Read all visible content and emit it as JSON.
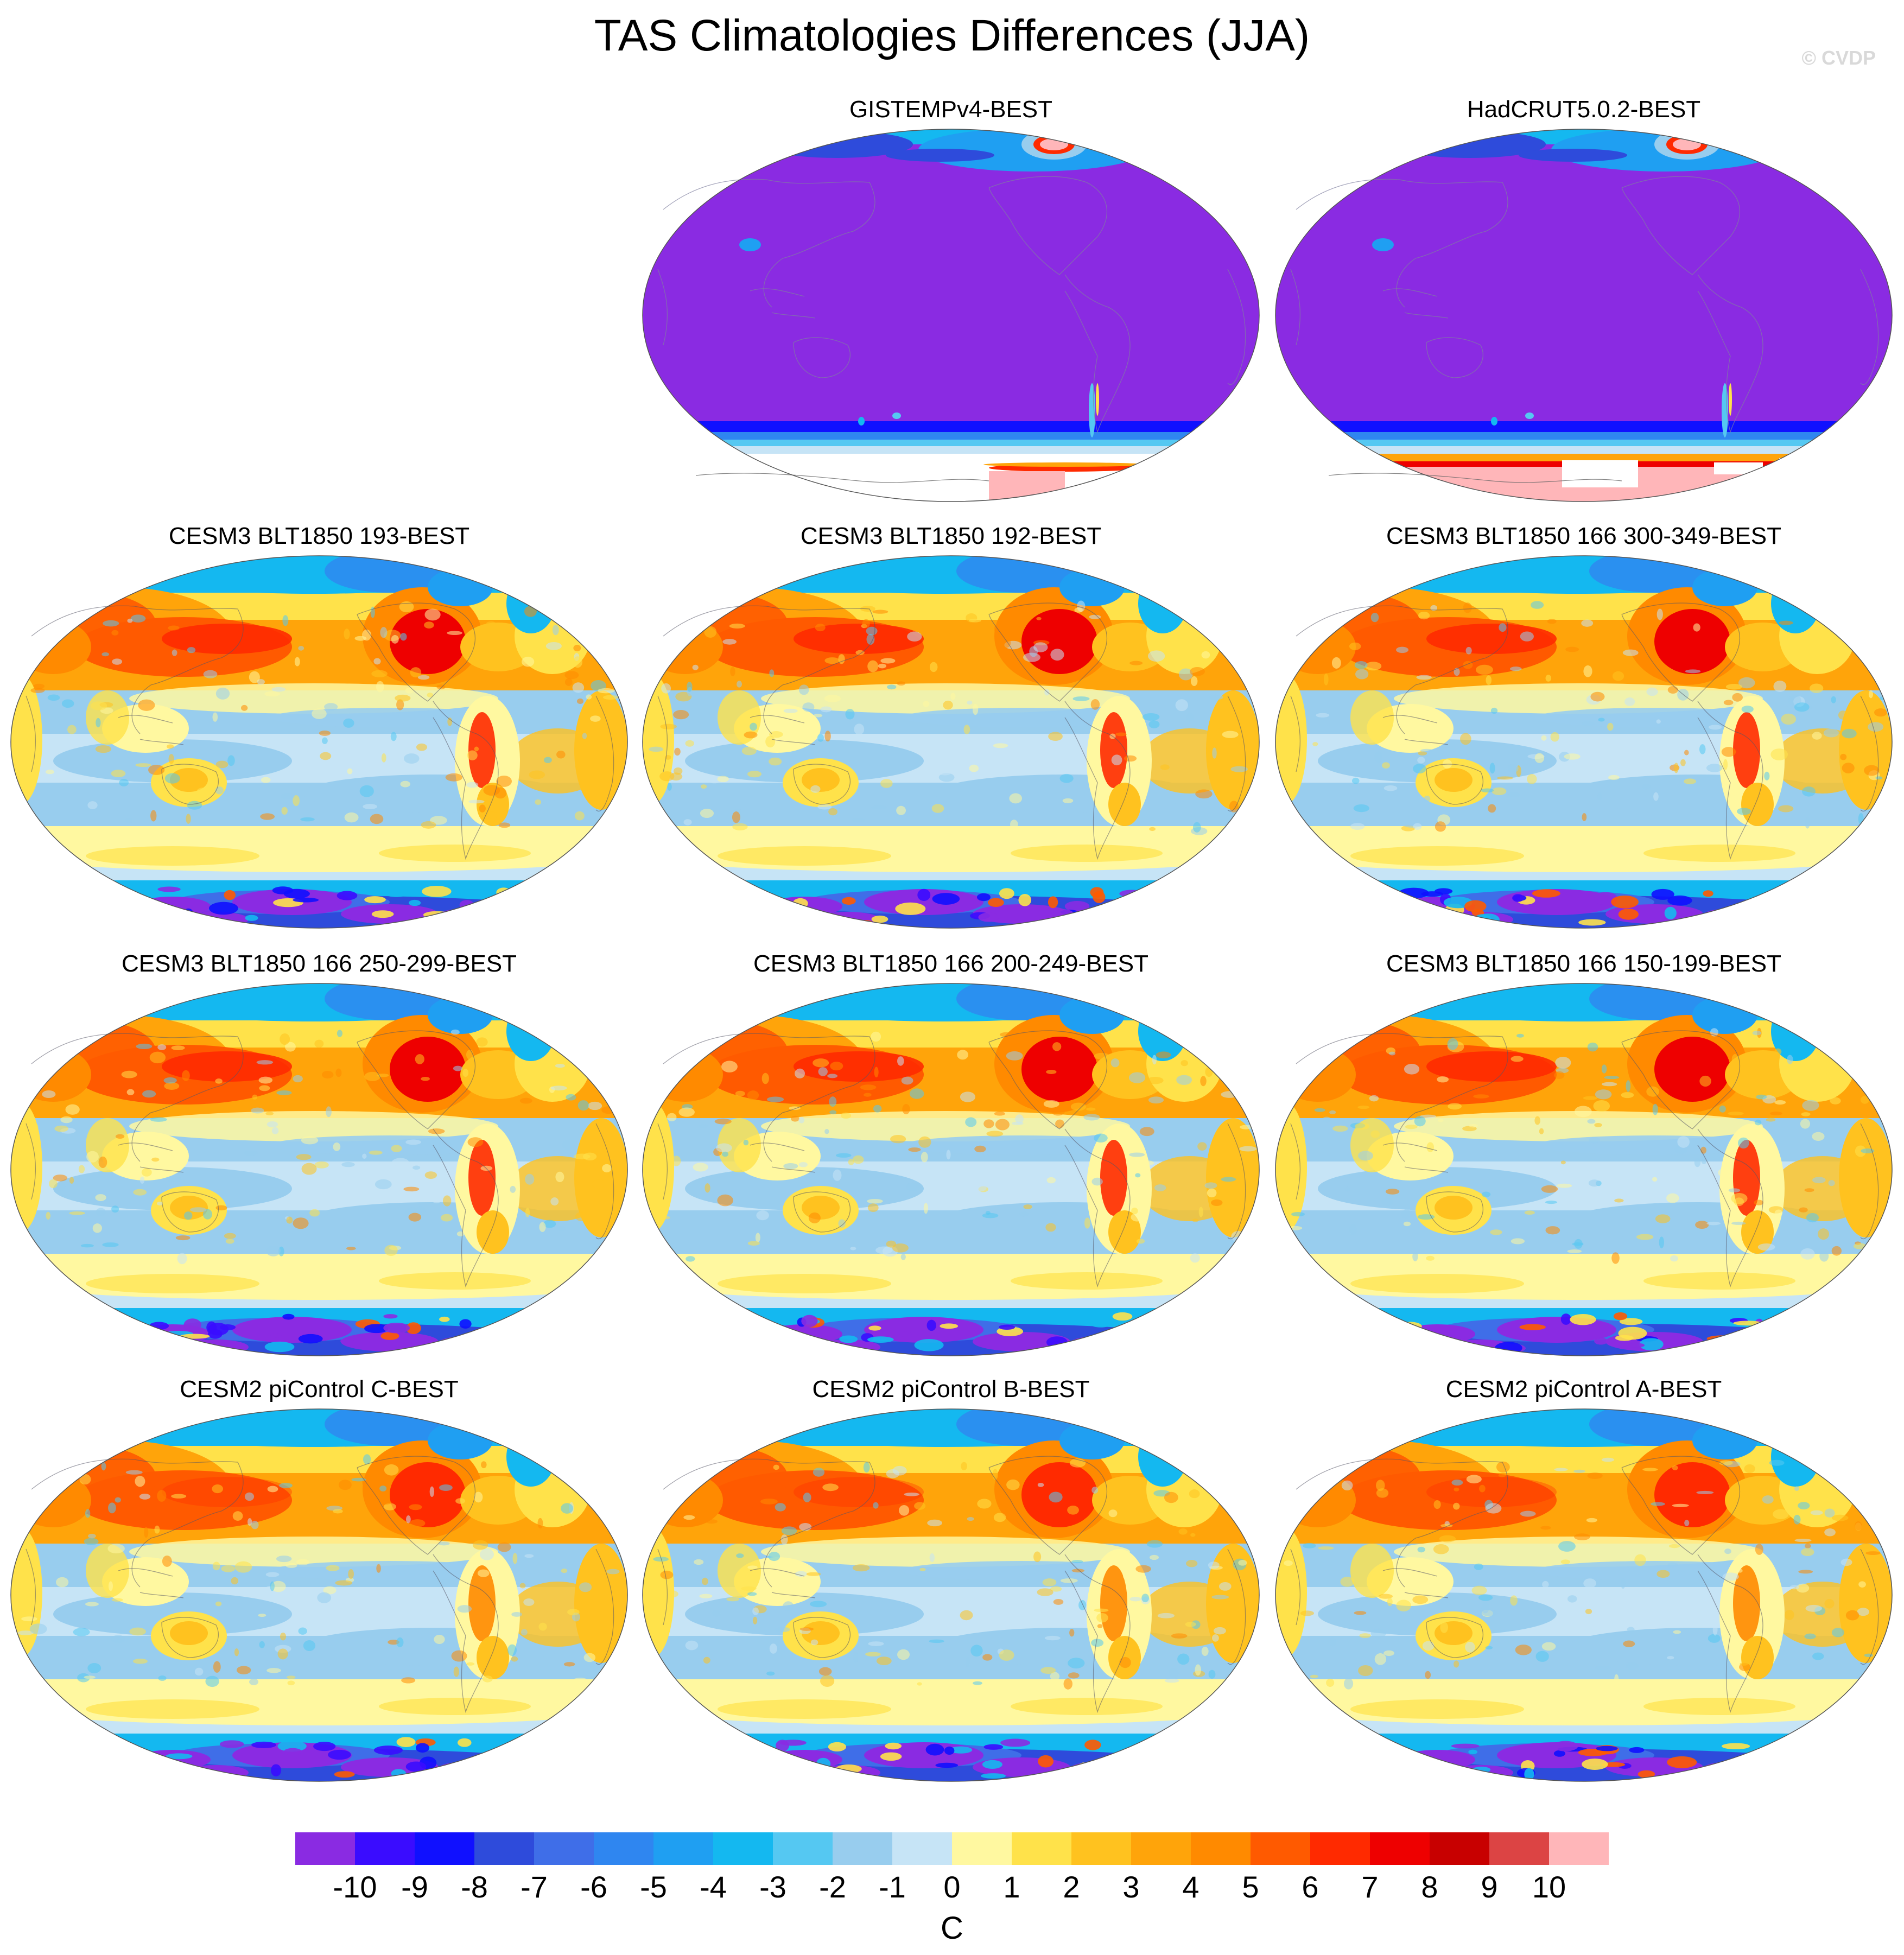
{
  "title": "TAS Climatologies Differences (JJA)",
  "watermark": "© CVDP",
  "panels": [
    {
      "id": "gistemp",
      "title": "GISTEMPv4-BEST",
      "style": "obs_gis"
    },
    {
      "id": "hadcrut",
      "title": "HadCRUT5.0.2-BEST",
      "style": "obs_had"
    },
    {
      "id": "cesm3-193",
      "title": "CESM3 BLT1850 193-BEST",
      "style": "model"
    },
    {
      "id": "cesm3-192",
      "title": "CESM3 BLT1850 192-BEST",
      "style": "model"
    },
    {
      "id": "cesm3-166-300",
      "title": "CESM3 BLT1850 166 300-349-BEST",
      "style": "model"
    },
    {
      "id": "cesm3-166-250",
      "title": "CESM3 BLT1850 166 250-299-BEST",
      "style": "model"
    },
    {
      "id": "cesm3-166-200",
      "title": "CESM3 BLT1850 166 200-249-BEST",
      "style": "model"
    },
    {
      "id": "cesm3-166-150",
      "title": "CESM3 BLT1850 166 150-199-BEST",
      "style": "model"
    },
    {
      "id": "cesm2-c",
      "title": "CESM2 piControl C-BEST",
      "style": "cesm2"
    },
    {
      "id": "cesm2-b",
      "title": "CESM2 piControl B-BEST",
      "style": "cesm2"
    },
    {
      "id": "cesm2-a",
      "title": "CESM2 piControl A-BEST",
      "style": "cesm2"
    }
  ],
  "colorbar": {
    "labels": [
      "-10",
      "-9",
      "-8",
      "-7",
      "-6",
      "-5",
      "-4",
      "-3",
      "-2",
      "-1",
      "0",
      "1",
      "2",
      "3",
      "4",
      "5",
      "6",
      "7",
      "8",
      "9",
      "10"
    ],
    "colors": [
      "#8a2be2",
      "#3a0cff",
      "#1010ff",
      "#2e4bdb",
      "#3f6ee8",
      "#2f86f0",
      "#1f9ff2",
      "#14b8f0",
      "#55c8f2",
      "#98cdee",
      "#c6e4f6",
      "#fff8a0",
      "#ffe24a",
      "#ffc21f",
      "#ffa40a",
      "#ff8a00",
      "#ff5a00",
      "#ff2a00",
      "#ee0000",
      "#c80000",
      "#dc4444",
      "#ffb6b9"
    ],
    "unit": "C"
  }
}
